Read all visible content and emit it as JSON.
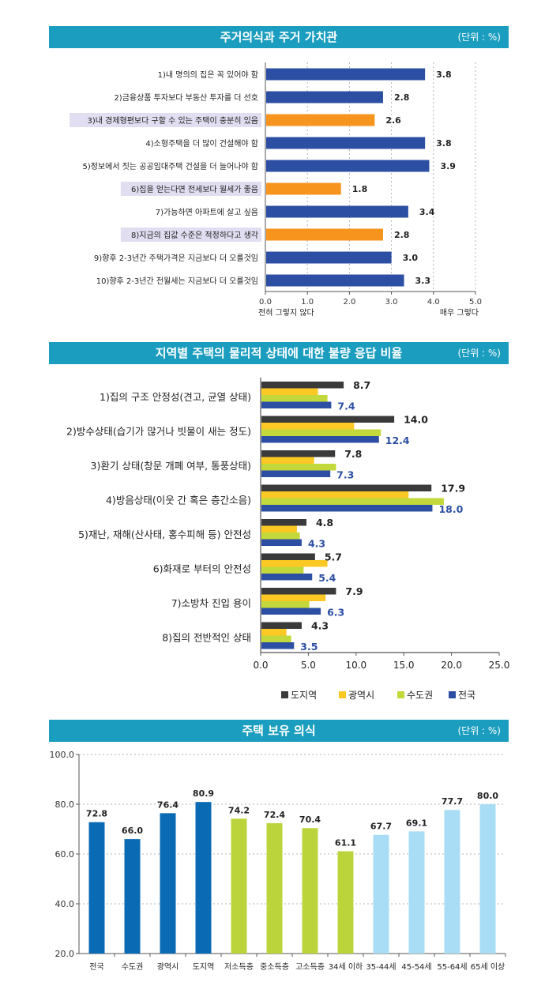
{
  "panels": [
    {
      "title": "주거의식과 주거 가치관",
      "unit": "(단위 : %)"
    },
    {
      "title": "지역별 주택의 물리적 상태에 대한 불량 응답 비율",
      "unit": "(단위 : %)"
    },
    {
      "title": "주택 보유 의식",
      "unit": "(단위 : %)"
    }
  ],
  "colors": {
    "header": "#1b9dbf",
    "blue": "#2c4fa3",
    "orange": "#f7941d",
    "highlight": "#e0def0",
    "dark": "#3a3a3a",
    "yellow": "#fcc823",
    "lime": "#c3d83a",
    "navy": "#2c4fa3",
    "col_blue": "#0a6ab4",
    "col_green": "#bcd43c",
    "col_light": "#a9ddf6"
  },
  "chart_data": [
    {
      "type": "bar",
      "orientation": "horizontal",
      "categories": [
        "1)내 명의의 집은 꼭 있어야 함",
        "2)금융상품 투자보다 부동산 투자를 더 선호",
        "3)내 경제형편보다 구할 수 있는 주택이 충분히 있음",
        "4)소형주택을 더 많이 건설해야 함",
        "5)정보에서 짓는 공공임대주택 건설을 더 늘어나야 함",
        "6)집을 얻는다면 전세보다 월세가 좋음",
        "7)가능하면 아파트에 살고 싶음",
        "8)지금의 집값 수준은 적정하다고 생각",
        "9)향후 2-3년간 주택가격은 지금보다 더 오를것임",
        "10)향후 2-3년간 전월세는 지금보다 더 오를것임"
      ],
      "values": [
        3.8,
        2.8,
        2.6,
        3.8,
        3.9,
        1.8,
        3.4,
        2.8,
        3.0,
        3.3
      ],
      "value_labels": [
        "3.8",
        "2.8",
        "2.6",
        "3.8",
        "3.9",
        "1.8",
        "3.4",
        "2.8",
        "3.0",
        "3.3"
      ],
      "highlighted": [
        false,
        false,
        true,
        false,
        false,
        true,
        false,
        true,
        false,
        false
      ],
      "xlim": [
        0,
        5
      ],
      "xticks": [
        "0.0",
        "1.0",
        "2.0",
        "3.0",
        "4.0",
        "5.0"
      ],
      "xlabel_left": "전혀 그렇지 않다",
      "xlabel_right": "매우 그렇다",
      "grid": "vertical dotted"
    },
    {
      "type": "bar",
      "orientation": "horizontal",
      "categories": [
        "1)집의 구조 안정성(견고, 균열 상태)",
        "2)방수상태(습기가 많거나 빗물이 새는 정도)",
        "3)환기 상태(창문 개폐 여부, 통풍상태)",
        "4)방음상태(이웃 간 혹은 층간소음)",
        "5)재난, 재해(산사태, 홍수피해 등) 안전성",
        "6)화재로 부터의 안전성",
        "7)소방차 진입 용이",
        "8)집의 전반적인 상태"
      ],
      "series": [
        {
          "name": "도지역",
          "values": [
            8.7,
            14.0,
            7.8,
            17.9,
            4.8,
            5.7,
            7.9,
            4.3
          ],
          "labels": [
            "8.7",
            "14.0",
            "7.8",
            "17.9",
            "4.8",
            "5.7",
            "7.9",
            "4.3"
          ]
        },
        {
          "name": "광역시",
          "values": [
            6.0,
            9.8,
            5.6,
            15.5,
            3.8,
            7.0,
            6.8,
            2.7
          ]
        },
        {
          "name": "수도권",
          "values": [
            7.0,
            12.6,
            7.9,
            19.2,
            4.1,
            4.5,
            5.1,
            3.2
          ]
        },
        {
          "name": "전국",
          "values": [
            7.4,
            12.4,
            7.3,
            18.0,
            4.3,
            5.4,
            6.3,
            3.5
          ],
          "labels": [
            "7.4",
            "12.4",
            "7.3",
            "18.0",
            "4.3",
            "5.4",
            "6.3",
            "3.5"
          ]
        }
      ],
      "xlim": [
        0,
        25
      ],
      "xticks": [
        "0.0",
        "5.0",
        "10.0",
        "15.0",
        "20.0",
        "25.0"
      ],
      "legend": "bottom-right"
    },
    {
      "type": "bar",
      "orientation": "vertical",
      "categories": [
        "전국",
        "수도권",
        "광역시",
        "도지역",
        "저소득층",
        "중소득층",
        "고소득층",
        "34세 이하",
        "35-44세",
        "45-54세",
        "55-64세",
        "65세 이상"
      ],
      "values": [
        72.8,
        66.0,
        76.4,
        80.9,
        74.2,
        72.4,
        70.4,
        61.1,
        67.7,
        69.1,
        77.7,
        80.0
      ],
      "value_labels": [
        "72.8",
        "66.0",
        "76.4",
        "80.9",
        "74.2",
        "72.4",
        "70.4",
        "61.1",
        "67.7",
        "69.1",
        "77.7",
        "80.0"
      ],
      "groups": [
        "blue",
        "blue",
        "blue",
        "blue",
        "green",
        "green",
        "green",
        "green",
        "light",
        "light",
        "light",
        "light"
      ],
      "ylim": [
        20,
        100
      ],
      "yticks": [
        "20.0",
        "40.0",
        "60.0",
        "80.0",
        "100.0"
      ],
      "grid": "horizontal dotted"
    }
  ]
}
